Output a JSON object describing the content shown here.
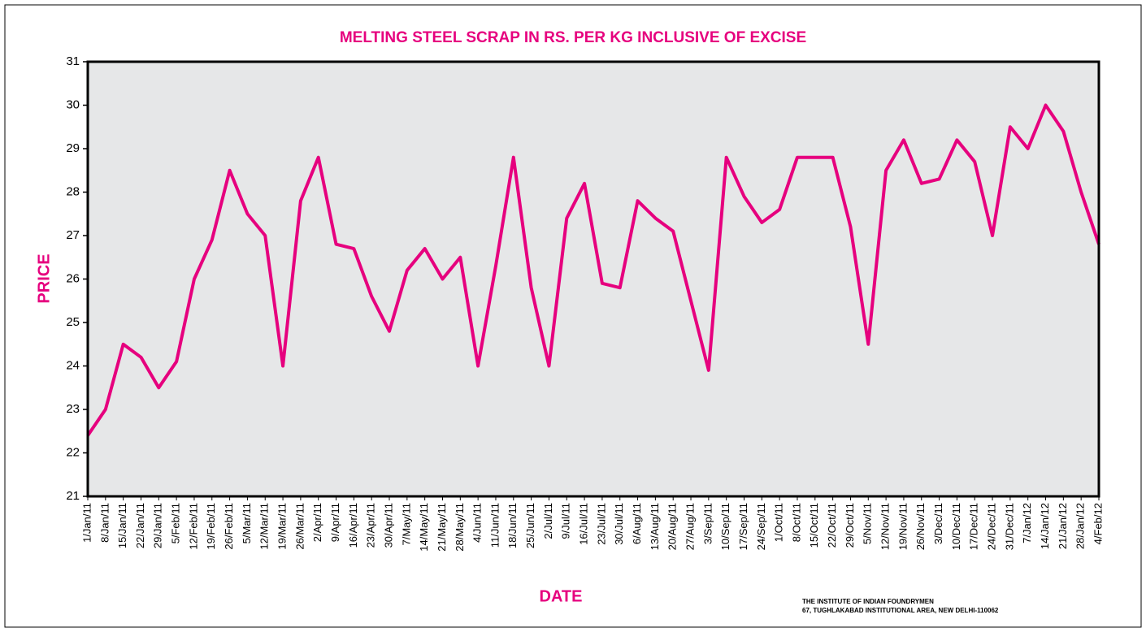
{
  "chart_data": {
    "type": "line",
    "title": "MELTING STEEL SCRAP IN RS. PER KG INCLUSIVE OF EXCISE",
    "xlabel": "DATE",
    "ylabel": "PRICE",
    "source": [
      "THE INSTITUTE OF INDIAN FOUNDRYMEN",
      "67, TUGHLAKABAD INSTITUTIONAL AREA, NEW DELHI-110062"
    ],
    "categories": [
      "1/Jan/11",
      "8/Jan/11",
      "15/Jan/11",
      "22/Jan/11",
      "29/Jan/11",
      "5/Feb/11",
      "12/Feb/11",
      "19/Feb/11",
      "26/Feb/11",
      "5/Mar/11",
      "12/Mar/11",
      "19/Mar/11",
      "26/Mar/11",
      "2/Apr/11",
      "9/Apr/11",
      "16/Apr/11",
      "23/Apr/11",
      "30/Apr/11",
      "7/May/11",
      "14/May/11",
      "21/May/11",
      "28/May/11",
      "4/Jun/11",
      "11/Jun/11",
      "18/Jun/11",
      "25/Jun/11",
      "2/Jul/11",
      "9/Jul/11",
      "16/Jul/11",
      "23/Jul/11",
      "30/Jul/11",
      "6/Aug/11",
      "13/Aug/11",
      "20/Aug/11",
      "27/Aug/11",
      "3/Sep/11",
      "10/Sep/11",
      "17/Sep/11",
      "24/Sep/11",
      "1/Oct/11",
      "8/Oct/11",
      "15/Oct/11",
      "22/Oct/11",
      "29/Oct/11",
      "5/Nov/11",
      "12/Nov/11",
      "19/Nov/11",
      "26/Nov/11",
      "3/Dec/11",
      "10/Dec/11",
      "17/Dec/11",
      "24/Dec/11",
      "31/Dec/11",
      "7/Jan/12",
      "14/Jan/12",
      "21/Jan/12",
      "28/Jan/12",
      "4/Feb/12"
    ],
    "series": [
      {
        "name": "Price",
        "color": "#e6007e",
        "values": [
          22.4,
          23.0,
          24.5,
          24.2,
          23.5,
          24.1,
          26.0,
          26.9,
          28.5,
          27.5,
          27.0,
          24.0,
          27.8,
          28.8,
          26.8,
          26.7,
          25.6,
          24.8,
          26.2,
          26.7,
          26.0,
          26.5,
          24.0,
          26.3,
          28.8,
          25.8,
          24.0,
          27.4,
          28.2,
          25.9,
          25.8,
          27.8,
          27.4,
          27.1,
          25.5,
          23.9,
          28.8,
          27.9,
          27.3,
          27.6,
          28.8,
          28.8,
          28.8,
          27.2,
          24.5,
          28.5,
          29.2,
          28.2,
          28.3,
          29.2,
          28.7,
          27.0,
          29.5,
          29.0,
          30.0,
          29.4,
          28.0,
          26.8
        ]
      }
    ],
    "ylim": [
      21,
      31
    ],
    "yticks": [
      21,
      22,
      23,
      24,
      25,
      26,
      27,
      28,
      29,
      30,
      31
    ],
    "plot_background": "#e6e7e8"
  }
}
